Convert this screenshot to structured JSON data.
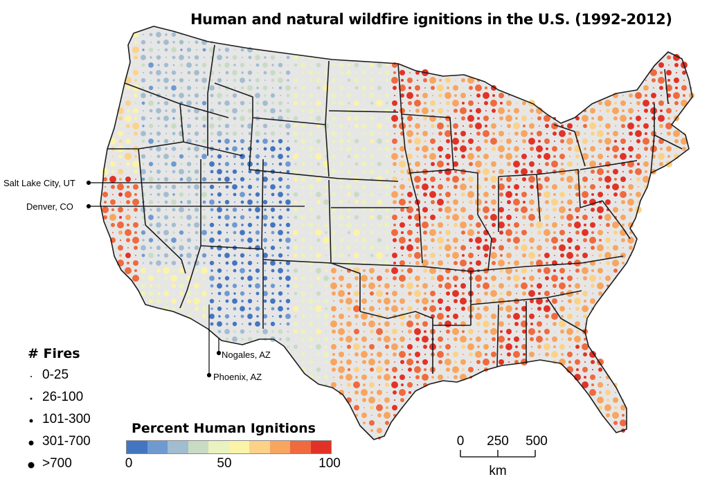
{
  "title": "Human and natural wildfire ignitions in the U.S. (1992-2012)",
  "cities": [
    {
      "id": "salt-lake-city",
      "label": "Salt Lake City, UT"
    },
    {
      "id": "denver",
      "label": "Denver, CO"
    },
    {
      "id": "nogales",
      "label": "Nogales, AZ"
    },
    {
      "id": "phoenix",
      "label": "Phoenix, AZ"
    }
  ],
  "fires_legend": {
    "heading": "# Fires",
    "classes": [
      "0-25",
      "26-100",
      "101-300",
      "301-700",
      ">700"
    ]
  },
  "percent_legend": {
    "heading": "Percent Human Ignitions",
    "tick_labels": [
      "0",
      "50",
      "100"
    ],
    "colors": [
      "#4475c1",
      "#6f9ad1",
      "#a2bdd0",
      "#c8dcc4",
      "#eaf2bf",
      "#fbf3a8",
      "#fcd288",
      "#f8a560",
      "#ef6a3e",
      "#e23227"
    ]
  },
  "scale_bar": {
    "labels": [
      "0",
      "250",
      "500"
    ],
    "unit": "km"
  },
  "colors": {
    "state_fill": "#e6e6e6",
    "state_border": "#1a1a1a"
  }
}
